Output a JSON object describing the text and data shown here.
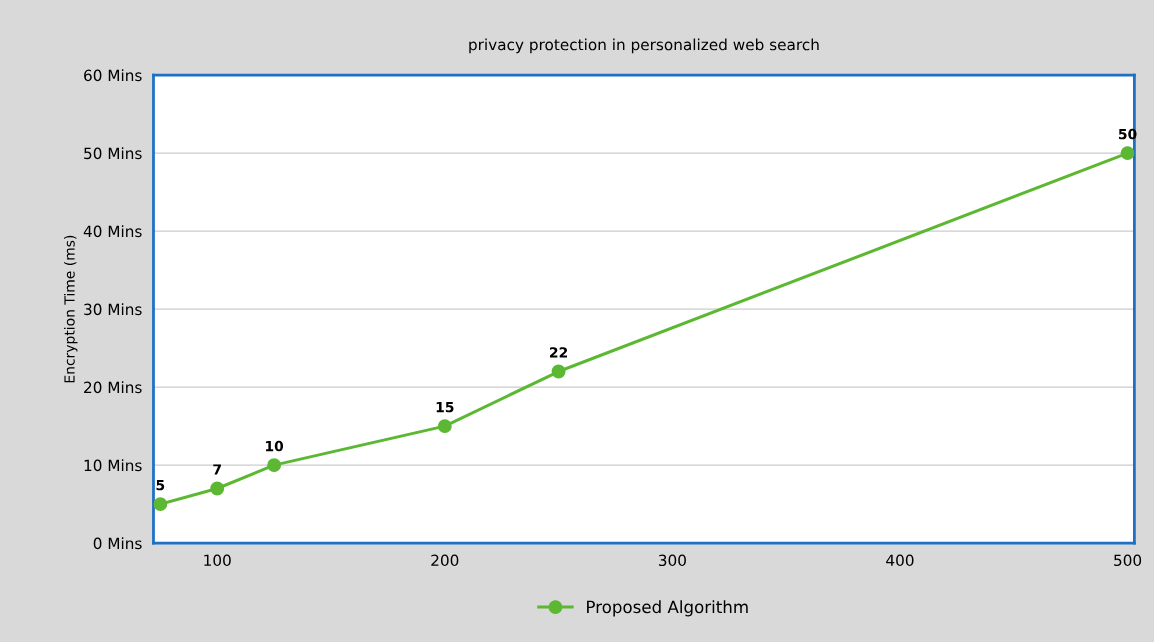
{
  "chart_data": {
    "type": "line",
    "title": "privacy protection in personalized web search",
    "ylabel": "Encryption Time (ms)",
    "x": [
      75,
      100,
      125,
      200,
      250,
      500
    ],
    "series": [
      {
        "name": "Proposed Algorithm",
        "color": "#5cb832",
        "values": [
          5,
          7,
          10,
          15,
          22,
          50
        ]
      }
    ],
    "xlim": [
      72,
      503
    ],
    "xticks": [
      100,
      200,
      300,
      400,
      500
    ],
    "ylim": [
      0,
      60
    ],
    "yticks": [
      {
        "value": 0,
        "label": "0 Mins"
      },
      {
        "value": 10,
        "label": "10 Mins"
      },
      {
        "value": 20,
        "label": "20 Mins"
      },
      {
        "value": 30,
        "label": "30 Mins"
      },
      {
        "value": 40,
        "label": "40 Mins"
      },
      {
        "value": 50,
        "label": "50 Mins"
      },
      {
        "value": 60,
        "label": "60 Mins"
      }
    ],
    "grid": "y",
    "legend": "bottom",
    "marker": "circle",
    "line_style": "solid",
    "data_labels": true
  }
}
